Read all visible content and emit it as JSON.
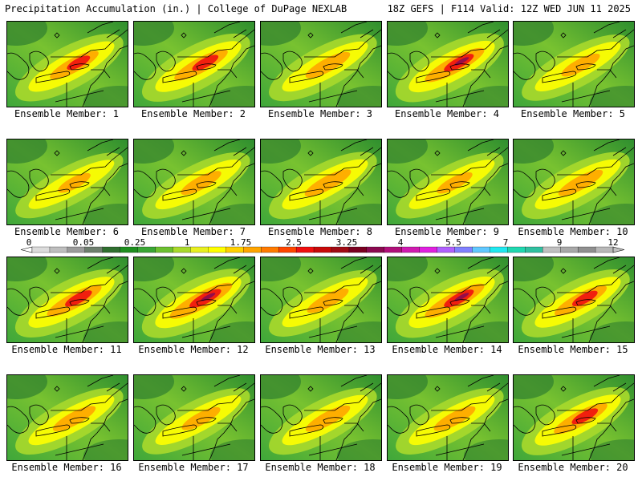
{
  "header": {
    "title_left": "Precipitation Accumulation (in.) | College of DuPage NEXLAB",
    "title_right": "18Z GEFS | F114 Valid: 12Z WED JUN 11 2025"
  },
  "panels": [
    {
      "label": "Ensemble Member: 1",
      "intensity": 0.62
    },
    {
      "label": "Ensemble Member: 2",
      "intensity": 0.7
    },
    {
      "label": "Ensemble Member: 3",
      "intensity": 0.55
    },
    {
      "label": "Ensemble Member: 4",
      "intensity": 0.8
    },
    {
      "label": "Ensemble Member: 5",
      "intensity": 0.45
    },
    {
      "label": "Ensemble Member: 6",
      "intensity": 0.35
    },
    {
      "label": "Ensemble Member: 7",
      "intensity": 0.48
    },
    {
      "label": "Ensemble Member: 8",
      "intensity": 0.58
    },
    {
      "label": "Ensemble Member: 9",
      "intensity": 0.4
    },
    {
      "label": "Ensemble Member: 10",
      "intensity": 0.55
    },
    {
      "label": "Ensemble Member: 11",
      "intensity": 0.72
    },
    {
      "label": "Ensemble Member: 12",
      "intensity": 0.85
    },
    {
      "label": "Ensemble Member: 13",
      "intensity": 0.5
    },
    {
      "label": "Ensemble Member: 14",
      "intensity": 0.8
    },
    {
      "label": "Ensemble Member: 15",
      "intensity": 0.68
    },
    {
      "label": "Ensemble Member: 16",
      "intensity": 0.52
    },
    {
      "label": "Ensemble Member: 17",
      "intensity": 0.45
    },
    {
      "label": "Ensemble Member: 18",
      "intensity": 0.55
    },
    {
      "label": "Ensemble Member: 19",
      "intensity": 0.5
    },
    {
      "label": "Ensemble Member: 20",
      "intensity": 0.7
    }
  ],
  "colorbar": {
    "labels": [
      "0",
      "0.05",
      "0.25",
      "1",
      "1.75",
      "2.5",
      "3.25",
      "4",
      "5.5",
      "7",
      "9",
      "12"
    ],
    "colors": [
      "#dcdcdc",
      "#bebebe",
      "#9b9b9b",
      "#6e7f6e",
      "#2f6f2f",
      "#1f8f1f",
      "#3aa635",
      "#6cc030",
      "#a9d92c",
      "#e8f020",
      "#ffff00",
      "#ffd000",
      "#ffa500",
      "#ff7a00",
      "#ff4500",
      "#f01010",
      "#c80a0a",
      "#a00a14",
      "#7a0020",
      "#8b0a50",
      "#b0107a",
      "#d01ab0",
      "#e020e0",
      "#b060ff",
      "#8080ff",
      "#60c8ff",
      "#20e8f0",
      "#20d8b0",
      "#30c0a0",
      "#c0c0c0",
      "#a8a8a8",
      "#909090",
      "#b8b8b8"
    ]
  }
}
